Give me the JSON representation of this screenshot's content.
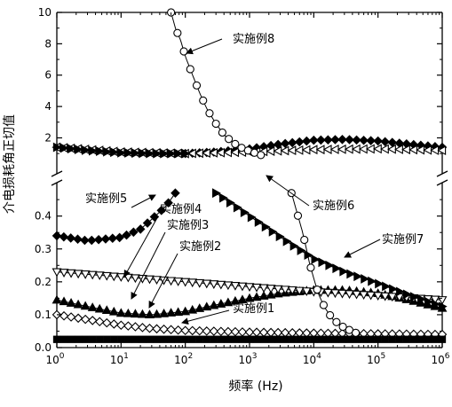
{
  "chart_data": {
    "type": "line",
    "xlabel": "频率 (Hz)",
    "ylabel": "介电损耗角正切值",
    "x_scale": "log",
    "xlim": [
      1,
      1000000
    ],
    "x_ticks": [
      {
        "value": 1,
        "base": "10",
        "exp": "0"
      },
      {
        "value": 10,
        "base": "10",
        "exp": "1"
      },
      {
        "value": 100,
        "base": "10",
        "exp": "2"
      },
      {
        "value": 1000,
        "base": "10",
        "exp": "3"
      },
      {
        "value": 10000,
        "base": "10",
        "exp": "4"
      },
      {
        "value": 100000,
        "base": "10",
        "exp": "5"
      },
      {
        "value": 1000000,
        "base": "10",
        "exp": "6"
      }
    ],
    "y_axis_broken": true,
    "ylim_lower": [
      0,
      0.48
    ],
    "ylim_upper": [
      0.5,
      10
    ],
    "y_ticks_lower": [
      {
        "value": 0.0,
        "label": "0.0"
      },
      {
        "value": 0.1,
        "label": "0.1"
      },
      {
        "value": 0.2,
        "label": "0.2"
      },
      {
        "value": 0.3,
        "label": "0.3"
      },
      {
        "value": 0.4,
        "label": "0.4"
      }
    ],
    "y_ticks_upper": [
      {
        "value": 2,
        "label": "2"
      },
      {
        "value": 4,
        "label": "4"
      },
      {
        "value": 6,
        "label": "6"
      },
      {
        "value": 8,
        "label": "8"
      },
      {
        "value": 10,
        "label": "10"
      }
    ],
    "grid": false,
    "annotations": [
      {
        "text": "实施例8",
        "target": 8
      },
      {
        "text": "实施例5",
        "target": 5
      },
      {
        "text": "实施例4",
        "target": 4
      },
      {
        "text": "实施例3",
        "target": 3
      },
      {
        "text": "实施例2",
        "target": 2
      },
      {
        "text": "实施例6",
        "target": 6
      },
      {
        "text": "实施例7",
        "target": 7
      },
      {
        "text": "实施例1",
        "target": 1
      }
    ],
    "series": [
      {
        "id": 1,
        "marker": "diamond-open",
        "color": "#000000",
        "x": [
          1,
          3,
          10,
          30,
          100,
          1000,
          10000,
          100000,
          1000000
        ],
        "y": [
          0.1,
          0.085,
          0.068,
          0.058,
          0.052,
          0.047,
          0.044,
          0.042,
          0.04
        ]
      },
      {
        "id": 2,
        "marker": "triangle-up-filled",
        "color": "#000000",
        "x": [
          1,
          3,
          10,
          30,
          100,
          300,
          1000,
          3000,
          10000,
          30000,
          100000,
          300000,
          1000000
        ],
        "y": [
          0.145,
          0.125,
          0.105,
          0.1,
          0.11,
          0.13,
          0.15,
          0.165,
          0.175,
          0.175,
          0.165,
          0.145,
          0.12
        ]
      },
      {
        "id": 3,
        "marker": "triangle-down-open",
        "color": "#000000",
        "x": [
          1,
          10,
          100,
          1000,
          10000,
          100000,
          1000000
        ],
        "y": [
          0.23,
          0.215,
          0.2,
          0.185,
          0.17,
          0.158,
          0.145
        ]
      },
      {
        "id": 4,
        "marker": "square-filled",
        "color": "#000000",
        "x": [
          1,
          10,
          100,
          1000,
          10000,
          100000,
          1000000
        ],
        "y": [
          0.025,
          0.025,
          0.025,
          0.025,
          0.025,
          0.025,
          0.025
        ]
      },
      {
        "id": 5,
        "marker": "diamond-filled",
        "color": "#000000",
        "x": [
          1,
          3,
          10,
          20,
          30,
          50,
          70
        ],
        "y": [
          0.34,
          0.325,
          0.335,
          0.36,
          0.39,
          0.43,
          0.47
        ],
        "x_upper": [
          100,
          300,
          1000,
          3000,
          10000,
          30000,
          100000,
          300000,
          1000000
        ],
        "y_upper": [
          1.0,
          1.1,
          1.3,
          1.6,
          1.85,
          1.9,
          1.8,
          1.6,
          1.4
        ]
      },
      {
        "id": 6,
        "marker": "triangle-left-open",
        "color": "#000000",
        "x": [
          1,
          10,
          100,
          1000,
          10000,
          100000,
          1000000
        ],
        "y": [
          1.4,
          1.1,
          1.0,
          1.1,
          1.25,
          1.3,
          1.2
        ]
      },
      {
        "id": 7,
        "marker": "triangle-right-filled",
        "color": "#000000",
        "x": [
          300,
          600,
          1000,
          2000,
          4000,
          10000,
          30000,
          100000,
          300000,
          1000000
        ],
        "y": [
          0.47,
          0.43,
          0.4,
          0.36,
          0.32,
          0.27,
          0.23,
          0.195,
          0.16,
          0.125
        ],
        "x_upper": [
          1,
          3,
          10,
          30,
          100
        ],
        "y_upper": [
          1.4,
          1.2,
          1.05,
          1.0,
          1.0
        ]
      },
      {
        "id": 8,
        "marker": "circle-open",
        "color": "#000000",
        "x_upper": [
          60,
          70,
          85,
          100,
          130,
          170,
          220,
          300,
          400,
          550,
          800,
          1100,
          1500
        ],
        "y_upper": [
          10,
          9.0,
          8.2,
          7.2,
          6.0,
          4.8,
          3.8,
          2.9,
          2.2,
          1.7,
          1.3,
          1.1,
          0.9
        ],
        "x": [
          4500,
          5500,
          6500,
          7500,
          8500,
          10000,
          12000,
          15000,
          20000,
          30000,
          45000
        ],
        "y": [
          0.47,
          0.41,
          0.36,
          0.31,
          0.26,
          0.21,
          0.16,
          0.12,
          0.085,
          0.06,
          0.045
        ]
      }
    ]
  }
}
